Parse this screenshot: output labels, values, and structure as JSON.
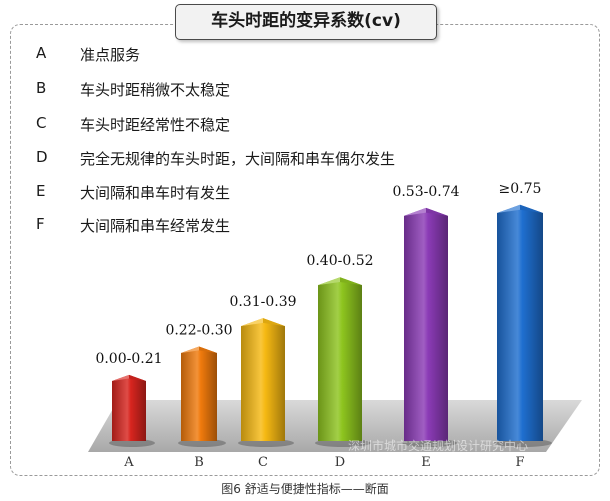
{
  "chart_data": {
    "type": "bar",
    "title": "车头时距的变异系数(cv)",
    "categories": [
      "A",
      "B",
      "C",
      "D",
      "E",
      "F"
    ],
    "values": [
      0.21,
      0.3,
      0.39,
      0.52,
      0.74,
      0.75
    ],
    "data_labels": [
      "0.00-0.21",
      "0.22-0.30",
      "0.31-0.39",
      "0.40-0.52",
      "0.53-0.74",
      "≥0.75"
    ],
    "legend": [
      {
        "key": "A",
        "text": "准点服务"
      },
      {
        "key": "B",
        "text": "车头时距稍微不太稳定"
      },
      {
        "key": "C",
        "text": "车头时距经常性不稳定"
      },
      {
        "key": "D",
        "text": "完全无规律的车头时距，大间隔和串车偶尔发生"
      },
      {
        "key": "E",
        "text": "大间隔和串车时有发生"
      },
      {
        "key": "F",
        "text": "大间隔和串车经常发生"
      }
    ],
    "colors": [
      "#d8251f",
      "#f07a0c",
      "#f6b913",
      "#8ec51f",
      "#8b3bb6",
      "#1f6fd0"
    ]
  },
  "caption": "图6    舒适与便捷性指标——断面",
  "watermark": "深圳市城市交通规划设计研究中心"
}
